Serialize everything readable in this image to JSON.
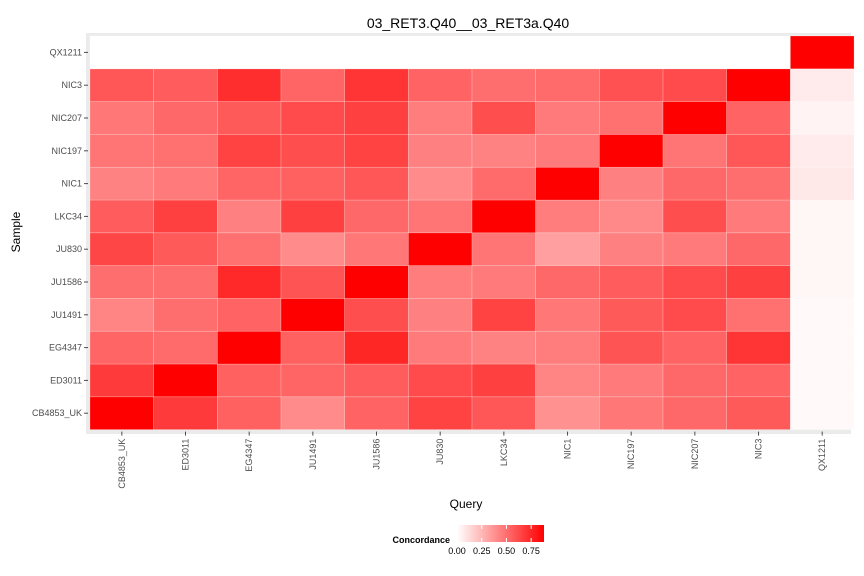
{
  "chart_data": {
    "type": "heatmap",
    "title": "03_RET3.Q40__03_RET3a.Q40",
    "xlabel": "Query",
    "ylabel": "Sample",
    "x_categories": [
      "CB4853_UK",
      "ED3011",
      "EG4347",
      "JU1491",
      "JU1586",
      "JU830",
      "LKC34",
      "NIC1",
      "NIC197",
      "NIC207",
      "NIC3",
      "QX1211"
    ],
    "y_categories": [
      "CB4853_UK",
      "ED3011",
      "EG4347",
      "JU1491",
      "JU1586",
      "JU830",
      "LKC34",
      "NIC1",
      "NIC197",
      "NIC207",
      "NIC3",
      "QX1211"
    ],
    "values": [
      [
        0.88,
        0.68,
        0.55,
        0.4,
        0.54,
        0.65,
        0.58,
        0.38,
        0.47,
        0.52,
        0.57,
        0.02
      ],
      [
        0.68,
        0.88,
        0.55,
        0.53,
        0.56,
        0.62,
        0.66,
        0.42,
        0.46,
        0.52,
        0.54,
        0.02
      ],
      [
        0.53,
        0.51,
        0.88,
        0.55,
        0.75,
        0.46,
        0.43,
        0.45,
        0.59,
        0.54,
        0.7,
        0.02
      ],
      [
        0.42,
        0.5,
        0.54,
        0.88,
        0.61,
        0.44,
        0.65,
        0.47,
        0.57,
        0.62,
        0.49,
        0.02
      ],
      [
        0.5,
        0.5,
        0.74,
        0.59,
        0.88,
        0.45,
        0.46,
        0.52,
        0.56,
        0.62,
        0.66,
        0.03
      ],
      [
        0.64,
        0.57,
        0.49,
        0.4,
        0.47,
        0.88,
        0.48,
        0.33,
        0.44,
        0.46,
        0.52,
        0.03
      ],
      [
        0.56,
        0.66,
        0.44,
        0.66,
        0.52,
        0.48,
        0.88,
        0.45,
        0.41,
        0.61,
        0.46,
        0.03
      ],
      [
        0.43,
        0.46,
        0.53,
        0.55,
        0.58,
        0.4,
        0.51,
        0.88,
        0.44,
        0.52,
        0.5,
        0.08
      ],
      [
        0.48,
        0.49,
        0.65,
        0.61,
        0.65,
        0.44,
        0.43,
        0.46,
        0.88,
        0.48,
        0.58,
        0.07
      ],
      [
        0.47,
        0.52,
        0.57,
        0.62,
        0.66,
        0.45,
        0.61,
        0.46,
        0.49,
        0.88,
        0.54,
        0.04
      ],
      [
        0.58,
        0.56,
        0.72,
        0.53,
        0.7,
        0.54,
        0.5,
        0.51,
        0.6,
        0.62,
        0.88,
        0.07
      ],
      [
        0.0,
        0.0,
        0.0,
        0.0,
        0.0,
        0.0,
        0.0,
        0.0,
        0.0,
        0.0,
        0.0,
        0.88
      ]
    ],
    "legend": {
      "title": "Concordance",
      "ticks": [
        "0.00",
        "0.25",
        "0.50",
        "0.75"
      ],
      "range": [
        0,
        0.88
      ],
      "placement": "bottom"
    },
    "colors": {
      "low": "#ffffff",
      "high": "#ff0000",
      "panel": "#ebebeb",
      "grid": "#ffffff"
    },
    "grid": true
  }
}
